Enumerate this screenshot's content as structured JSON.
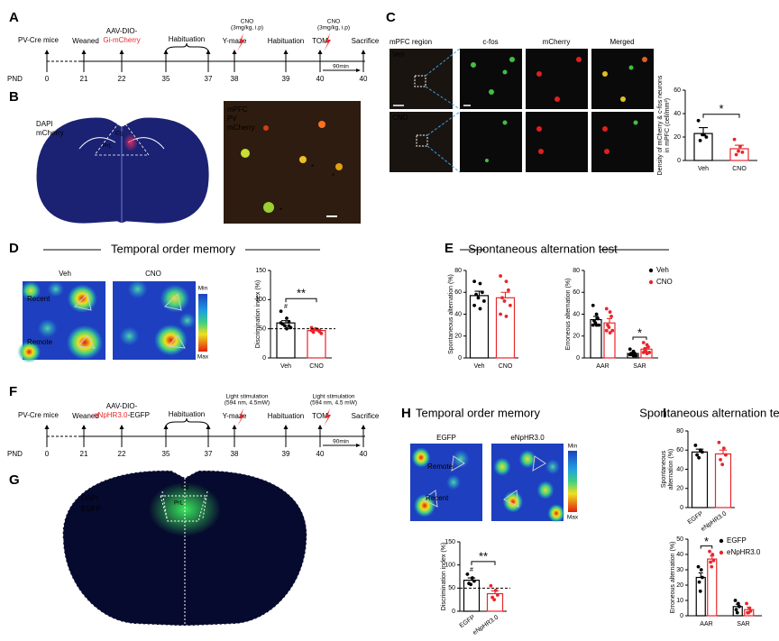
{
  "labels": [
    "A",
    "B",
    "C",
    "D",
    "E",
    "F",
    "G",
    "H",
    "I"
  ],
  "timelines": [
    {
      "strain": "PV-Cre mice",
      "axis": "PND",
      "days": [
        0,
        21,
        22,
        35,
        37,
        38,
        39,
        40,
        40
      ],
      "weaned": "Weaned",
      "virus_line1": "AAV-DIO-",
      "virus_red": "Gi-mCherry",
      "habituation": [
        "Habituation",
        "Habituation"
      ],
      "test1": "Y-maze",
      "test2": "TOM",
      "treatment1": [
        "CNO",
        "(3mg/kg, i.p)"
      ],
      "treatment2": [
        "CNO",
        "(3mg/kg, i.p)"
      ],
      "end": "Sacrifice",
      "interval": "90min"
    },
    {
      "strain": "PV-Cre mice",
      "axis": "PND",
      "days": [
        0,
        21,
        22,
        35,
        37,
        38,
        39,
        40,
        40
      ],
      "weaned": "Weaned",
      "virus_line1": "AAV-DIO-",
      "virus_red": "eNpHR3.0",
      "virus_black": "-EGFP",
      "habituation": [
        "Habituation",
        "Habituation"
      ],
      "test1": "Y-maze",
      "test2": "TOM",
      "treatment1": [
        "Light stimulation",
        "(594 nm, 4.5mW)"
      ],
      "treatment2": [
        "Light stimulation",
        "(594 nm, 4.5 mW)"
      ],
      "end": "Sacrifice",
      "interval": "90min"
    }
  ],
  "panel_b": {
    "stains": [
      "DAPI",
      "mCherry"
    ],
    "regions": [
      "Cg",
      "PrL"
    ],
    "inset": [
      "mPFC",
      "PV",
      "mCherry"
    ]
  },
  "panel_c": {
    "headers": [
      "mPFC region",
      "c-fos",
      "mCherry",
      "Merged"
    ],
    "rows": [
      "Veh",
      "CNO"
    ]
  },
  "panel_d": {
    "title": "Temporal order memory",
    "conditions": [
      "Veh",
      "CNO"
    ],
    "objects": [
      "Recent",
      "Remote"
    ],
    "scale": [
      "Min",
      "Max"
    ]
  },
  "panel_e": {
    "title": "Spontaneous alternation test"
  },
  "panel_g": {
    "stains": [
      "DAPI",
      "EGFP"
    ],
    "regions": [
      "Cg",
      "PrL"
    ]
  },
  "panel_h": {
    "title": "Temporal order memory",
    "conditions": [
      "EGFP",
      "eNpHR3.0"
    ],
    "objects": [
      "Remote",
      "Recent"
    ],
    "scale": [
      "Min",
      "Max"
    ]
  },
  "panel_i": {
    "title": "Spontaneous alternation test"
  },
  "chart_data": [
    {
      "type": "bar",
      "ylabel": [
        "Density of mCherry & c-fos neurons",
        "in mPFC (cell/mm²)"
      ],
      "categories": [
        "Veh",
        "CNO"
      ],
      "colors": [
        "#000000",
        "#e8262b"
      ],
      "values": [
        23,
        10
      ],
      "errors": [
        5,
        3
      ],
      "points": [
        [
          34,
          22,
          20,
          17,
          22
        ],
        [
          18,
          12,
          7,
          5,
          8
        ]
      ],
      "ylim": [
        0,
        60
      ],
      "yticks": [
        0,
        20,
        40,
        60
      ],
      "significance": "*"
    },
    {
      "type": "bar",
      "ylabel": [
        "Discrimination index (%)"
      ],
      "categories": [
        "Veh",
        "CNO"
      ],
      "colors": [
        "#000000",
        "#e8262b"
      ],
      "values": [
        60,
        47
      ],
      "errors": [
        4,
        2
      ],
      "points": [
        [
          80,
          68,
          62,
          58,
          55,
          52,
          60,
          50,
          55
        ],
        [
          52,
          48,
          45,
          44,
          50,
          42,
          47,
          49,
          46
        ]
      ],
      "ylim": [
        0,
        150
      ],
      "yticks": [
        0,
        50,
        100,
        150
      ],
      "reference_line": 50,
      "markers": [
        "#",
        null
      ],
      "significance": "**"
    },
    {
      "type": "bar",
      "ylabel": [
        "Spontaneous alternation (%)"
      ],
      "categories": [
        "Veh",
        "CNO"
      ],
      "colors": [
        "#000000",
        "#e8262b"
      ],
      "values": [
        57,
        55
      ],
      "errors": [
        4,
        5
      ],
      "points": [
        [
          70,
          68,
          60,
          58,
          55,
          52,
          48,
          45
        ],
        [
          75,
          70,
          62,
          55,
          52,
          48,
          40,
          38
        ]
      ],
      "ylim": [
        0,
        80
      ],
      "yticks": [
        0,
        20,
        40,
        60,
        80
      ]
    },
    {
      "type": "bar",
      "ylabel": [
        "Erroneous alternation (%)"
      ],
      "categories": [
        "AAR",
        "SAR"
      ],
      "series": [
        {
          "name": "Veh",
          "color": "#000000",
          "values": [
            35,
            4
          ],
          "errors": [
            3,
            1
          ],
          "points": [
            [
              48,
              40,
              36,
              34,
              32,
              30,
              30,
              30
            ],
            [
              8,
              6,
              4,
              4,
              3,
              2,
              3,
              2
            ]
          ]
        },
        {
          "name": "CNO",
          "color": "#e8262b",
          "values": [
            32,
            8
          ],
          "errors": [
            4,
            1.5
          ],
          "points": [
            [
              45,
              42,
              38,
              30,
              28,
              25,
              25,
              23
            ],
            [
              14,
              12,
              10,
              8,
              6,
              5,
              5,
              4
            ]
          ]
        }
      ],
      "ylim": [
        0,
        80
      ],
      "yticks": [
        0,
        20,
        40,
        60,
        80
      ],
      "significance": [
        null,
        "*"
      ]
    },
    {
      "type": "bar",
      "ylabel": [
        "Discrimination index (%)"
      ],
      "categories": [
        "EGFP",
        "eNpHR3.0"
      ],
      "colors": [
        "#000000",
        "#e8262b"
      ],
      "values": [
        67,
        38
      ],
      "errors": [
        5,
        6
      ],
      "points": [
        [
          80,
          72,
          65,
          60,
          58
        ],
        [
          55,
          45,
          35,
          30,
          25
        ]
      ],
      "ylim": [
        0,
        150
      ],
      "yticks": [
        0,
        50,
        100,
        150
      ],
      "reference_line": 50,
      "markers": [
        "#",
        null
      ],
      "significance": "**",
      "rotate_labels": true
    },
    {
      "type": "bar",
      "ylabel": [
        "Spontaneous",
        "alternation (%)"
      ],
      "categories": [
        "EGFP",
        "eNpHR3.0"
      ],
      "colors": [
        "#000000",
        "#e8262b"
      ],
      "values": [
        58,
        56
      ],
      "errors": [
        3,
        4
      ],
      "points": [
        [
          65,
          60,
          58,
          55,
          52
        ],
        [
          68,
          62,
          55,
          50,
          45
        ]
      ],
      "ylim": [
        0,
        80
      ],
      "yticks": [
        0,
        20,
        40,
        60,
        80
      ],
      "rotate_labels": true
    },
    {
      "type": "bar",
      "ylabel": [
        "Erroneous alternation (%)"
      ],
      "categories": [
        "AAR",
        "SAR"
      ],
      "series": [
        {
          "name": "EGFP",
          "color": "#000000",
          "values": [
            25,
            6
          ],
          "errors": [
            3,
            1.5
          ],
          "points": [
            [
              32,
              30,
              25,
              22,
              16
            ],
            [
              10,
              8,
              6,
              4,
              2
            ]
          ]
        },
        {
          "name": "eNpHR3.0",
          "color": "#e8262b",
          "values": [
            37,
            4
          ],
          "errors": [
            2,
            1.5
          ],
          "points": [
            [
              42,
              40,
              36,
              35,
              32
            ],
            [
              8,
              5,
              3,
              2,
              2
            ]
          ]
        }
      ],
      "ylim": [
        0,
        50
      ],
      "yticks": [
        0,
        10,
        20,
        30,
        40,
        50
      ],
      "significance": [
        "*",
        null
      ]
    }
  ]
}
